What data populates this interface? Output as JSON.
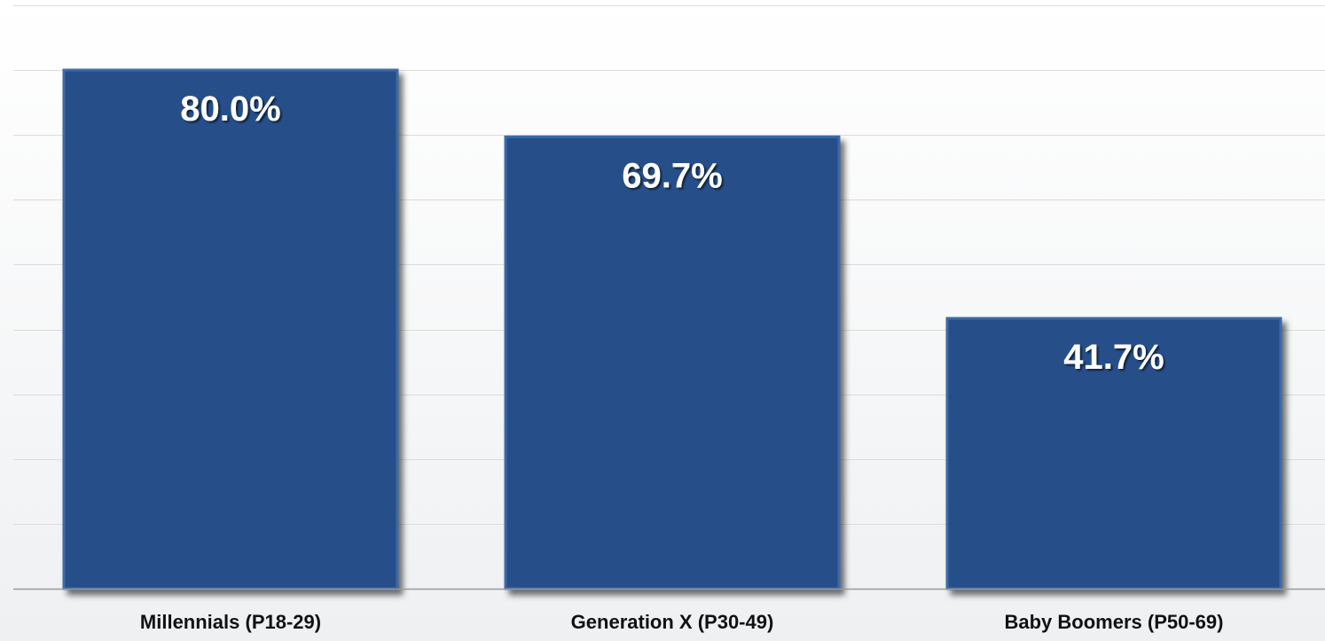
{
  "chart_data": {
    "type": "bar",
    "categories": [
      "Millennials (P18-29)",
      "Generation X (P30-49)",
      "Baby Boomers (P50-69)"
    ],
    "values": [
      80.0,
      69.7,
      41.7
    ],
    "data_labels": [
      "80.0%",
      "69.7%",
      "41.7%"
    ],
    "title": "",
    "xlabel": "",
    "ylabel": "",
    "ylim": [
      0,
      90
    ],
    "grid": true,
    "legend": "none",
    "colors": {
      "bar": "#26508a",
      "bar_border": "#3d6aa6",
      "gridline": "#dcdcdc",
      "axis": "#9a9a9a",
      "label_text": "#ffffff",
      "category_text": "#111111"
    }
  }
}
